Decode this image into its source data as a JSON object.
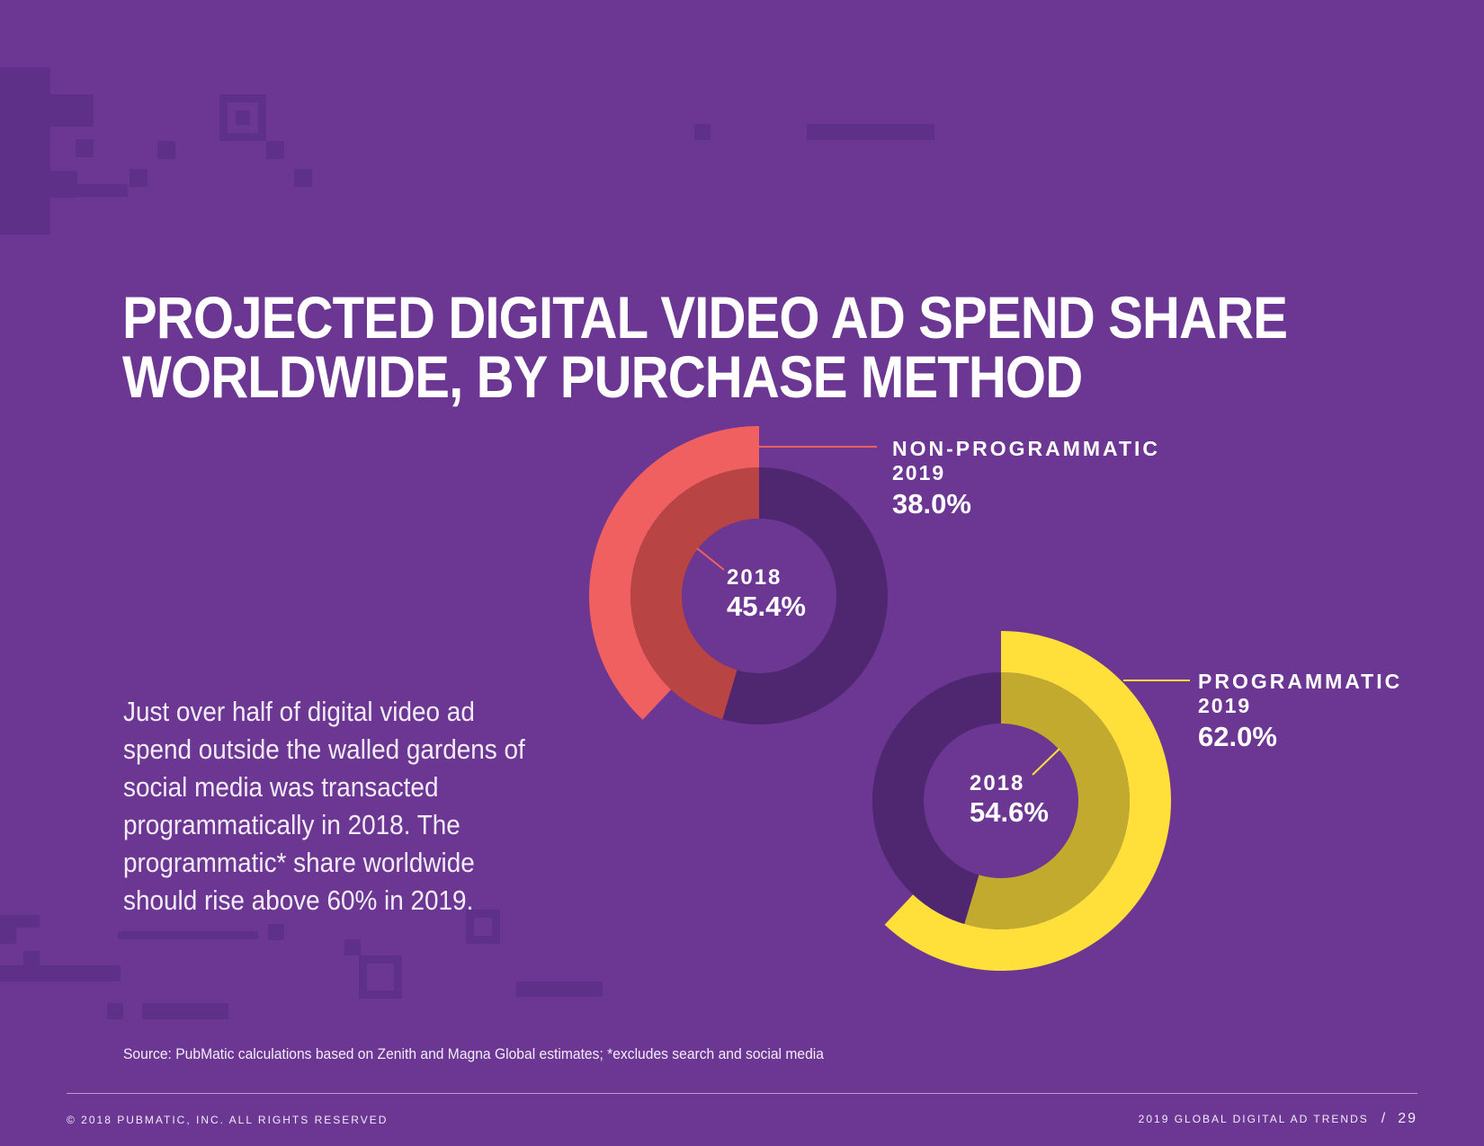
{
  "title": {
    "line1": "PROJECTED DIGITAL VIDEO AD SPEND SHARE",
    "line2": "WORLDWIDE, BY PURCHASE METHOD"
  },
  "body_text": "Just over half of digital video ad spend outside the walled gardens of social media was transacted programmatically in 2018. The programmatic* share worldwide should rise above 60% in 2019.",
  "source": "Source: PubMatic calculations based on Zenith and Magna Global estimates; *excludes search and social media",
  "footer": {
    "copyright": "© 2018 PUBMATIC, INC. ALL RIGHTS RESERVED",
    "report": "2019 GLOBAL DIGITAL AD TRENDS",
    "separator": "/",
    "page": "29"
  },
  "colors": {
    "background": "#6b3793",
    "ring_track": "#4e2770",
    "non_programmatic_2019": "#f06060",
    "non_programmatic_2018": "#b84444",
    "programmatic_2019": "#ffe03a",
    "programmatic_2018": "#c2aa2e"
  },
  "chart_data": [
    {
      "type": "pie",
      "style": "nested donut",
      "category": "NON-PROGRAMMATIC",
      "outer_ring": {
        "year": "2019",
        "value": 38.0,
        "label": "38.0%"
      },
      "inner_ring": {
        "year": "2018",
        "value": 45.4,
        "label": "45.4%"
      },
      "callout": {
        "category": "NON-PROGRAMMATIC",
        "year": "2019",
        "value_label": "38.0%"
      },
      "center": {
        "year": "2018",
        "value_label": "45.4%"
      }
    },
    {
      "type": "pie",
      "style": "nested donut",
      "category": "PROGRAMMATIC",
      "outer_ring": {
        "year": "2019",
        "value": 62.0,
        "label": "62.0%"
      },
      "inner_ring": {
        "year": "2018",
        "value": 54.6,
        "label": "54.6%"
      },
      "callout": {
        "category": "PROGRAMMATIC",
        "year": "2019",
        "value_label": "62.0%"
      },
      "center": {
        "year": "2018",
        "value_label": "54.6%"
      }
    }
  ]
}
